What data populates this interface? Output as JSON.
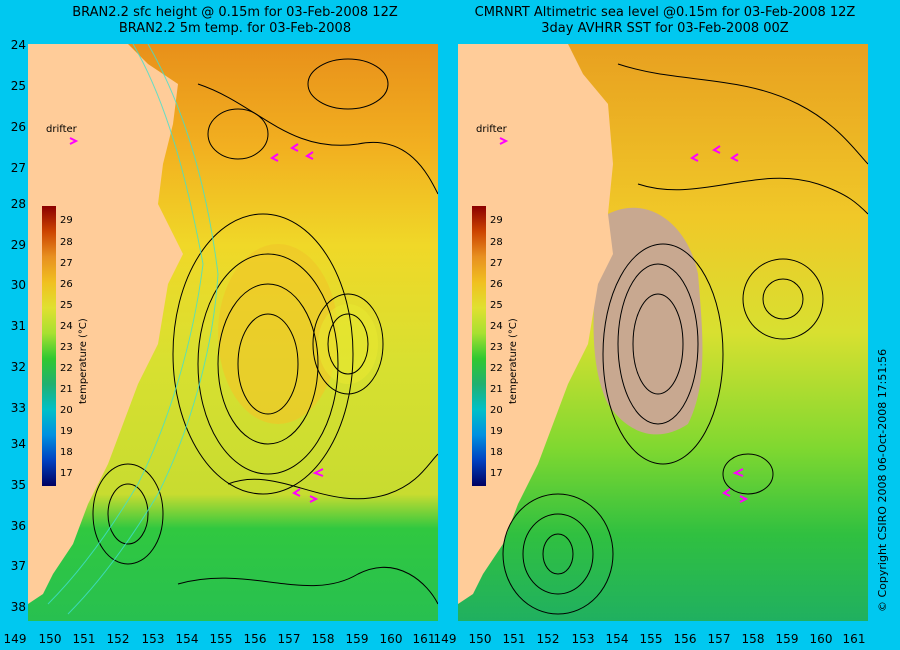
{
  "left_panel": {
    "title_line1": "BRAN2.2 sfc height @ 0.15m for 03-Feb-2008 12Z",
    "title_line2": "BRAN2.2 5m temp. for 03-Feb-2008",
    "drifter_label": "drifter"
  },
  "right_panel": {
    "title_line1": "CMRNRT Altimetric sea level  @0.15m  for 03-Feb-2008 12Z",
    "title_line2": "3day AVHRR SST for 03-Feb-2008 00Z",
    "drifter_label": "drifter"
  },
  "colorbar": {
    "title": "temperature (°C)",
    "ticks": [
      "29",
      "28",
      "27",
      "26",
      "25",
      "24",
      "23",
      "22",
      "21",
      "20",
      "19",
      "18",
      "17"
    ]
  },
  "lat_ticks": [
    "24",
    "25",
    "26",
    "27",
    "28",
    "29",
    "30",
    "31",
    "32",
    "33",
    "34",
    "35",
    "36",
    "37",
    "38"
  ],
  "lon_ticks": [
    "149",
    "150",
    "151",
    "152",
    "153",
    "154",
    "155",
    "156",
    "157",
    "158",
    "159",
    "160",
    "161"
  ],
  "copyright": "© Copyright CSIRO 2008   06-Oct-2008 17:51:56",
  "colors": {
    "background": "#00C8F0",
    "land": "#FFCC99",
    "drifter": "#FF00FF",
    "contour": "#000000",
    "bathymetry": "#40E0D0",
    "cloud": "#C8A890"
  }
}
